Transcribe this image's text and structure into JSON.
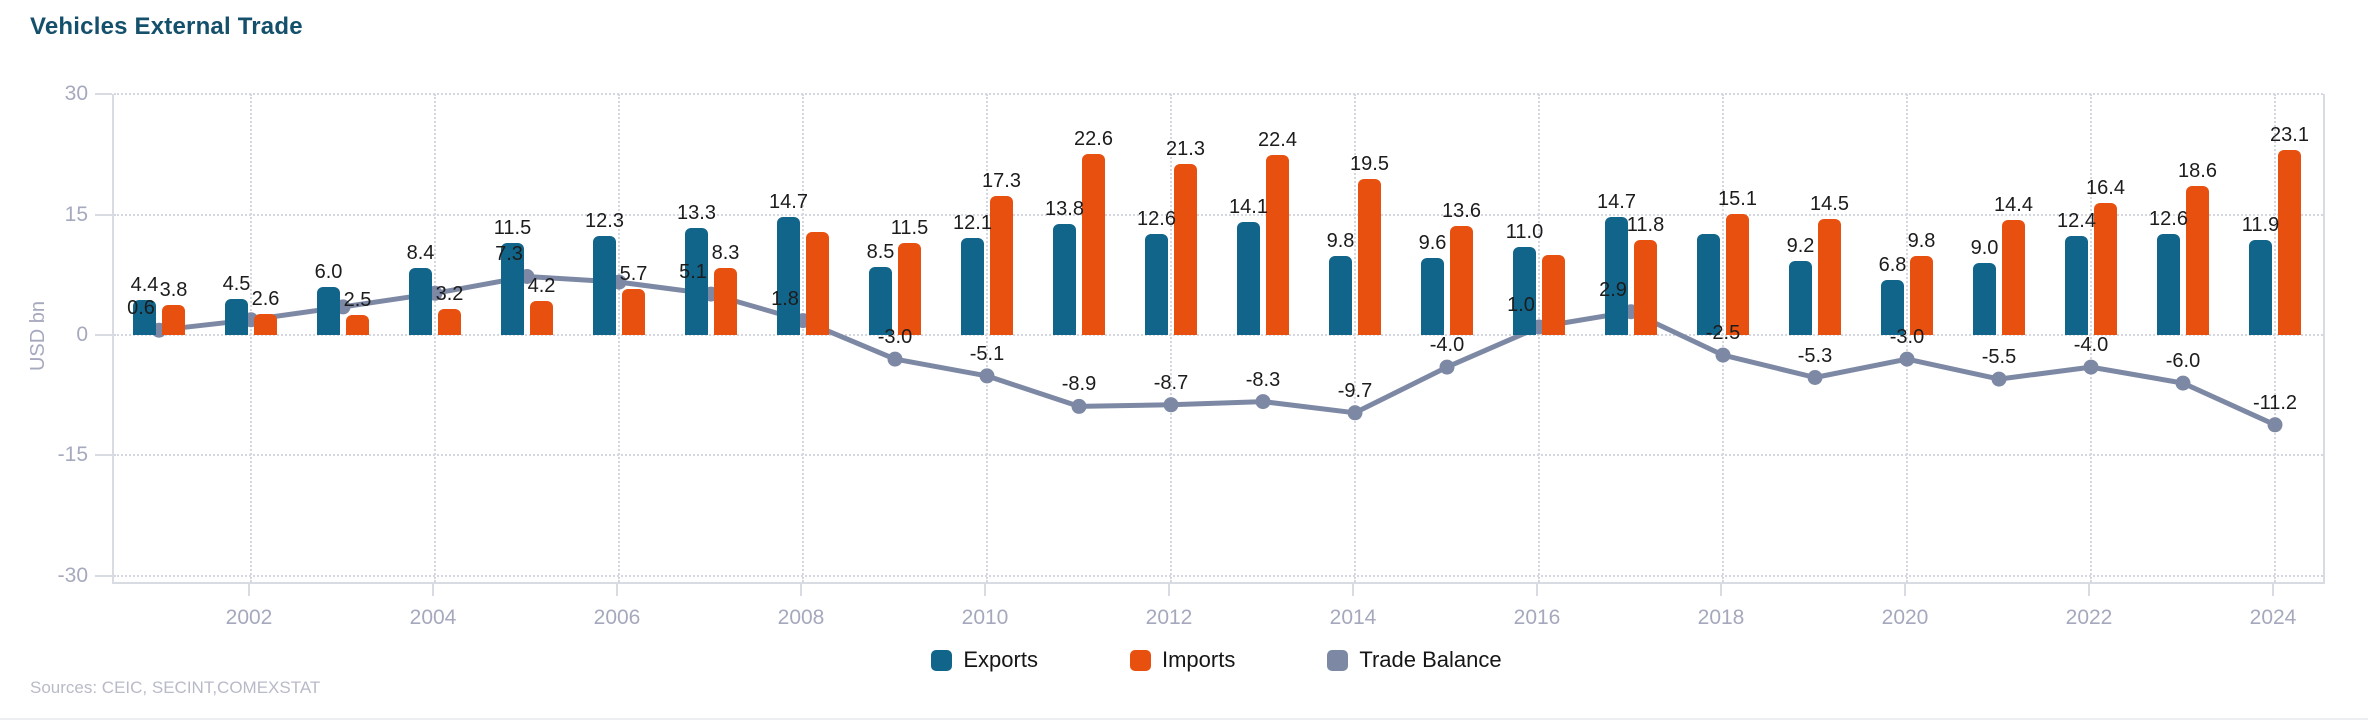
{
  "chart_data": {
    "type": "bar+line combo",
    "title": "Vehicles External Trade",
    "ylabel": "USD bn",
    "ylim": [
      -30,
      30
    ],
    "y_ticks": [
      30,
      15,
      0,
      -15,
      -30
    ],
    "grid": "dotted",
    "legend_position": "bottom",
    "categories": [
      2001,
      2002,
      2003,
      2004,
      2005,
      2006,
      2007,
      2008,
      2009,
      2010,
      2011,
      2012,
      2013,
      2014,
      2015,
      2016,
      2017,
      2018,
      2019,
      2020,
      2021,
      2022,
      2023,
      2024
    ],
    "x_tick_years": [
      2002,
      2004,
      2006,
      2008,
      2010,
      2012,
      2014,
      2016,
      2018,
      2020,
      2022,
      2024
    ],
    "series": [
      {
        "name": "Exports",
        "type": "bar",
        "color": "#12658a",
        "values": [
          4.4,
          4.5,
          6.0,
          8.4,
          11.5,
          12.3,
          13.3,
          14.7,
          8.5,
          12.1,
          13.8,
          12.6,
          14.1,
          9.8,
          9.6,
          11.0,
          14.7,
          12.6,
          9.2,
          6.8,
          9.0,
          12.4,
          12.6,
          11.9
        ],
        "unlabeled_years": [
          2018
        ]
      },
      {
        "name": "Imports",
        "type": "bar",
        "color": "#e8500f",
        "values": [
          3.8,
          2.6,
          2.5,
          3.2,
          4.2,
          5.7,
          8.3,
          12.9,
          11.5,
          17.3,
          22.6,
          21.3,
          22.4,
          19.5,
          13.6,
          10.0,
          11.8,
          15.1,
          14.5,
          9.8,
          14.4,
          16.4,
          18.6,
          23.1
        ],
        "unlabeled_years": [
          2008,
          2016
        ]
      },
      {
        "name": "Trade Balance",
        "type": "line",
        "color": "#7d89a4",
        "values": [
          0.6,
          1.9,
          3.5,
          5.2,
          7.3,
          6.6,
          5.1,
          1.8,
          -3.0,
          -5.1,
          -8.9,
          -8.7,
          -8.3,
          -9.7,
          -4.0,
          1.0,
          2.9,
          -2.5,
          -5.3,
          -3.0,
          -5.5,
          -4.0,
          -6.0,
          -11.2
        ],
        "unlabeled_years": [
          2002,
          2003,
          2004,
          2006
        ]
      }
    ]
  },
  "sources_note": "Sources: CEIC, SECINT,COMEXSTAT",
  "ui_colors": {
    "background": "#ffffff",
    "title_text": "#14506c",
    "axis_text": "#a6a9bd",
    "grid": "#d4d6e0",
    "axis_line": "#d9dbe3",
    "value_label": "#1c1c1c",
    "sources_text": "#b8bbc7"
  }
}
